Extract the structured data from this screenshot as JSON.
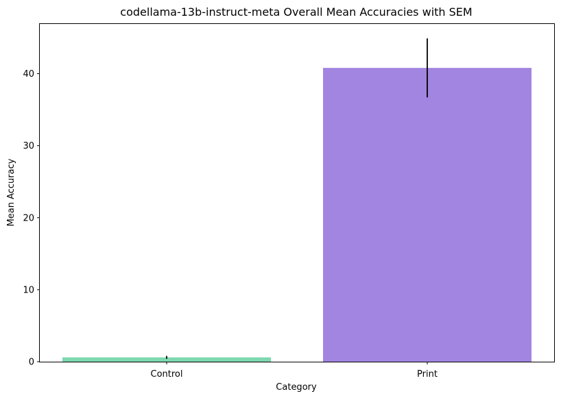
{
  "chart_data": {
    "type": "bar",
    "title": "codellama-13b-instruct-meta Overall Mean Accuracies with SEM",
    "xlabel": "Category",
    "ylabel": "Mean Accuracy",
    "categories": [
      "Control",
      "Print"
    ],
    "values": [
      0.6,
      40.8
    ],
    "sem": [
      0.2,
      4.1
    ],
    "colors": [
      "#7dd8b0",
      "#a285e0"
    ],
    "ylim": [
      0,
      46.9
    ],
    "yticks": [
      0,
      10,
      20,
      30,
      40
    ],
    "grid": false,
    "legend": "none"
  }
}
